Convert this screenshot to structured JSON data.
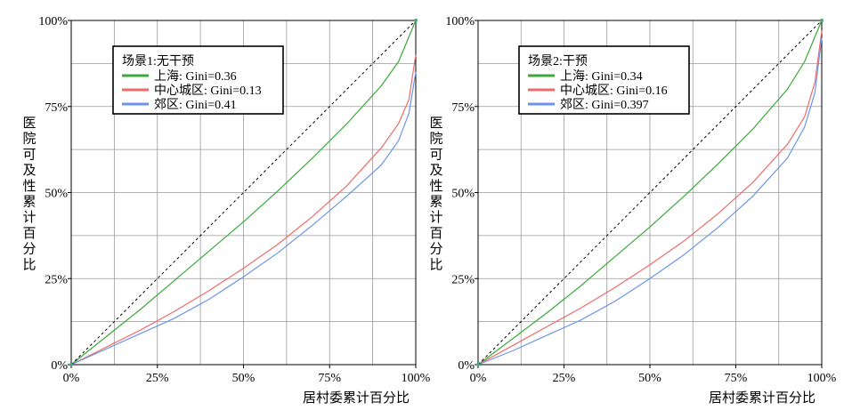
{
  "chart_data": [
    {
      "type": "line",
      "title": "",
      "xlabel": "居村委累计百分比",
      "ylabel": "医院可及性累计百分比",
      "xlim": [
        0,
        100
      ],
      "ylim": [
        0,
        100
      ],
      "x_ticks": [
        "0%",
        "25%",
        "50%",
        "75%",
        "100%"
      ],
      "y_ticks": [
        "0%",
        "25%",
        "50%",
        "75%",
        "100%"
      ],
      "grid": true,
      "legend_position": "top-left",
      "legend_title": "场景1:无干预",
      "series": [
        {
          "name": "上海: Gini=0.36",
          "color": "#3aaa3a",
          "x": [
            0,
            10,
            20,
            30,
            40,
            50,
            60,
            70,
            80,
            90,
            95,
            100
          ],
          "y": [
            0,
            8,
            16,
            24.5,
            33,
            41.5,
            50.5,
            60,
            70,
            81,
            88,
            100
          ]
        },
        {
          "name": "中心城区: Gini=0.13",
          "color": "#ee6b6b",
          "x": [
            0,
            10,
            20,
            30,
            40,
            50,
            60,
            70,
            80,
            90,
            95,
            98,
            100
          ],
          "y": [
            0,
            5,
            10,
            15.5,
            21.5,
            28,
            35,
            43,
            52,
            63,
            70,
            77,
            90
          ]
        },
        {
          "name": "郊区: Gini=0.41",
          "color": "#6a95e8",
          "x": [
            0,
            10,
            20,
            30,
            40,
            50,
            60,
            70,
            80,
            90,
            95,
            98,
            100
          ],
          "y": [
            0,
            4.5,
            9,
            13.5,
            19,
            25.5,
            32.5,
            40.5,
            49,
            58,
            65,
            73,
            85
          ]
        },
        {
          "name": "",
          "color": "#000000",
          "dashed": true,
          "x": [
            0,
            100
          ],
          "y": [
            0,
            100
          ]
        }
      ]
    },
    {
      "type": "line",
      "title": "",
      "xlabel": "居村委累计百分比",
      "ylabel": "医院可及性累计百分比",
      "xlim": [
        0,
        100
      ],
      "ylim": [
        0,
        100
      ],
      "x_ticks": [
        "0%",
        "25%",
        "50%",
        "75%",
        "100%"
      ],
      "y_ticks": [
        "0%",
        "25%",
        "50%",
        "75%",
        "100%"
      ],
      "grid": true,
      "legend_position": "top-left",
      "legend_title": "场景2:干预",
      "series": [
        {
          "name": "上海: Gini=0.34",
          "color": "#3aaa3a",
          "x": [
            0,
            10,
            20,
            30,
            40,
            50,
            60,
            70,
            80,
            90,
            95,
            100
          ],
          "y": [
            0,
            7.5,
            15,
            23,
            31.5,
            40,
            49,
            58.5,
            68.5,
            80,
            88,
            100
          ]
        },
        {
          "name": "中心城区: Gini=0.16",
          "color": "#ee6b6b",
          "x": [
            0,
            10,
            20,
            30,
            40,
            50,
            60,
            70,
            80,
            90,
            95,
            98,
            100
          ],
          "y": [
            0,
            5.5,
            11,
            16.5,
            22.5,
            29,
            36,
            44,
            53,
            64,
            72,
            82,
            97
          ]
        },
        {
          "name": "郊区: Gini=0.397",
          "color": "#6a95e8",
          "x": [
            0,
            10,
            20,
            30,
            40,
            50,
            60,
            70,
            80,
            90,
            95,
            98,
            100
          ],
          "y": [
            0,
            4,
            8.5,
            13,
            18.5,
            25,
            32,
            40,
            49,
            60,
            69,
            79,
            95
          ]
        },
        {
          "name": "",
          "color": "#000000",
          "dashed": true,
          "x": [
            0,
            100
          ],
          "y": [
            0,
            100
          ]
        }
      ]
    }
  ]
}
